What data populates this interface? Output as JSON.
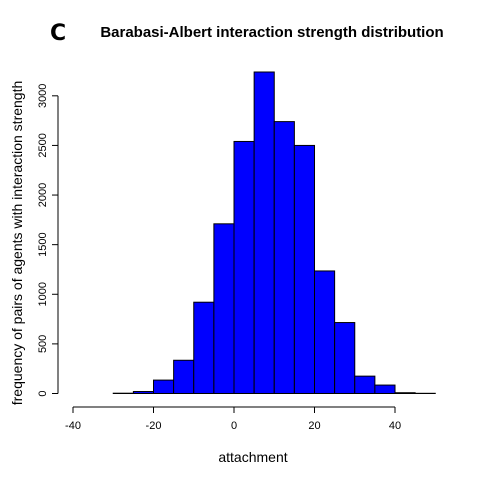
{
  "panel_letter": "C",
  "chart_data": {
    "type": "bar",
    "subtype": "histogram",
    "title": "Barabasi-Albert interaction strength distribution",
    "xlabel": "attachment",
    "ylabel": "frequency of pairs of agents with interaction strength",
    "bin_width": 5,
    "bins": [
      {
        "start": -40,
        "end": -35,
        "count": 0
      },
      {
        "start": -35,
        "end": -30,
        "count": 0
      },
      {
        "start": -30,
        "end": -25,
        "count": 3
      },
      {
        "start": -25,
        "end": -20,
        "count": 20
      },
      {
        "start": -20,
        "end": -15,
        "count": 135
      },
      {
        "start": -15,
        "end": -10,
        "count": 335
      },
      {
        "start": -10,
        "end": -5,
        "count": 920
      },
      {
        "start": -5,
        "end": 0,
        "count": 1710
      },
      {
        "start": 0,
        "end": 5,
        "count": 2540
      },
      {
        "start": 5,
        "end": 10,
        "count": 3240
      },
      {
        "start": 10,
        "end": 15,
        "count": 2740
      },
      {
        "start": 15,
        "end": 20,
        "count": 2500
      },
      {
        "start": 20,
        "end": 25,
        "count": 1235
      },
      {
        "start": 25,
        "end": 30,
        "count": 715
      },
      {
        "start": 30,
        "end": 35,
        "count": 175
      },
      {
        "start": 35,
        "end": 40,
        "count": 85
      },
      {
        "start": 40,
        "end": 45,
        "count": 8
      },
      {
        "start": 45,
        "end": 50,
        "count": 2
      }
    ],
    "xlim": [
      -40,
      50
    ],
    "ylim": [
      0,
      3240
    ],
    "x_ticks": [
      -40,
      -20,
      0,
      20,
      40
    ],
    "y_ticks": [
      0,
      500,
      1000,
      1500,
      2000,
      2500,
      3000
    ],
    "bar_color": "#0000ff",
    "grid": false
  }
}
